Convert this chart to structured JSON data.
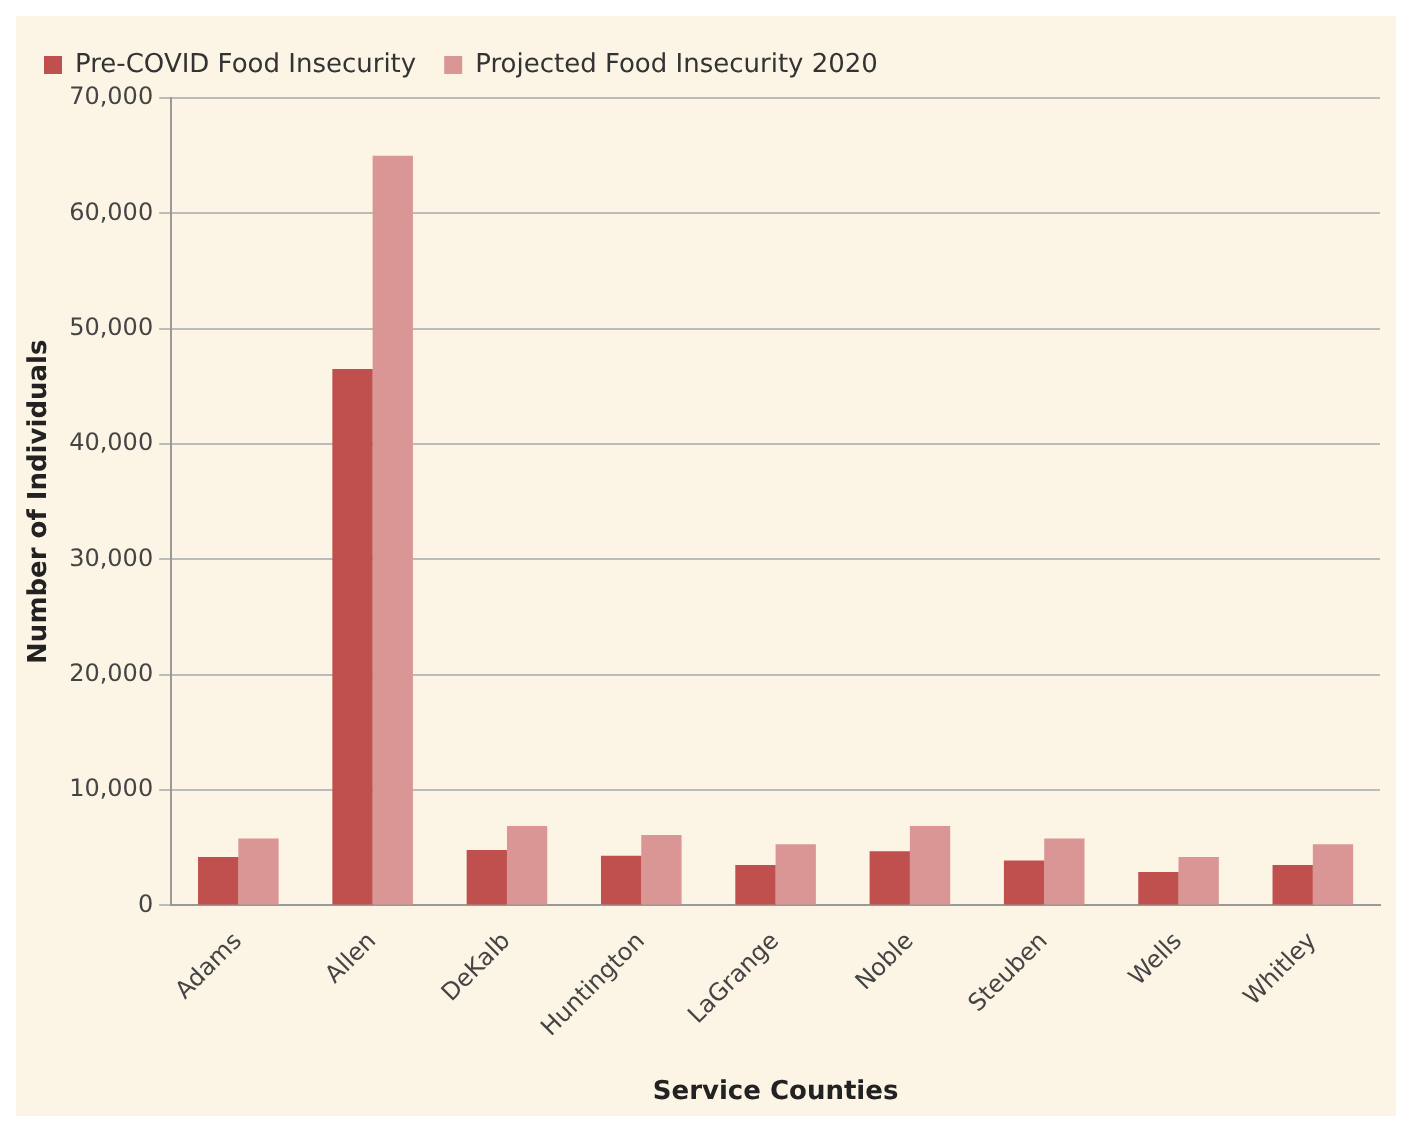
{
  "chart_data": {
    "type": "bar",
    "xlabel": "Service Counties",
    "ylabel": "Number of Individuals",
    "categories": [
      "Adams",
      "Allen",
      "DeKalb",
      "Huntington",
      "LaGrange",
      "Noble",
      "Steuben",
      "Wells",
      "Whitley"
    ],
    "series": [
      {
        "name": "Pre-COVID Food Insecurity",
        "color": "#c0504d",
        "values": [
          4200,
          46500,
          4800,
          4300,
          3500,
          4700,
          3900,
          2900,
          3500
        ]
      },
      {
        "name": "Projected Food Insecurity 2020",
        "color": "#d99694",
        "values": [
          5800,
          65000,
          6900,
          6100,
          5300,
          6900,
          5800,
          4200,
          5300
        ]
      }
    ],
    "ylim": [
      0,
      70000
    ],
    "yticks": [
      {
        "value": 0,
        "label": "0"
      },
      {
        "value": 10000,
        "label": "10,000"
      },
      {
        "value": 20000,
        "label": "20,000"
      },
      {
        "value": 30000,
        "label": "30,000"
      },
      {
        "value": 40000,
        "label": "40,000"
      },
      {
        "value": 50000,
        "label": "50,000"
      },
      {
        "value": 60000,
        "label": "60,000"
      },
      {
        "value": 70000,
        "label": "70,000"
      }
    ],
    "grid": "y",
    "legend": "top left"
  }
}
